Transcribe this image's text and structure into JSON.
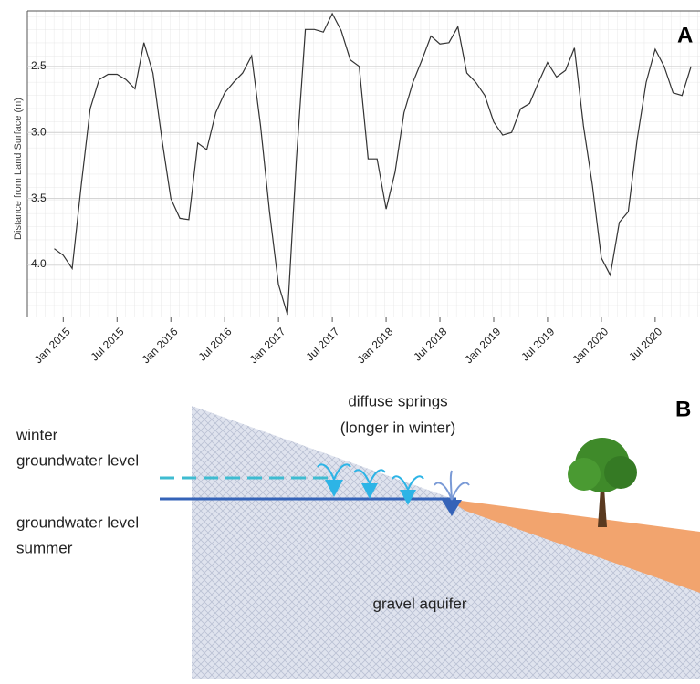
{
  "chart_data": {
    "type": "line",
    "panel_label": "A",
    "y_label": "Distance from Land Surface (m)",
    "x": [
      "2014-12",
      "2015-01",
      "2015-02",
      "2015-03",
      "2015-04",
      "2015-05",
      "2015-06",
      "2015-07",
      "2015-08",
      "2015-09",
      "2015-10",
      "2015-11",
      "2015-12",
      "2016-01",
      "2016-02",
      "2016-03",
      "2016-04",
      "2016-05",
      "2016-06",
      "2016-07",
      "2016-08",
      "2016-09",
      "2016-10",
      "2016-11",
      "2016-12",
      "2017-01",
      "2017-02",
      "2017-03",
      "2017-04",
      "2017-05",
      "2017-06",
      "2017-07",
      "2017-08",
      "2017-09",
      "2017-10",
      "2017-11",
      "2017-12",
      "2018-01",
      "2018-02",
      "2018-03",
      "2018-04",
      "2018-05",
      "2018-06",
      "2018-07",
      "2018-08",
      "2018-09",
      "2018-10",
      "2018-11",
      "2018-12",
      "2019-01",
      "2019-02",
      "2019-03",
      "2019-04",
      "2019-05",
      "2019-06",
      "2019-07",
      "2019-08",
      "2019-09",
      "2019-10",
      "2019-11",
      "2019-12",
      "2020-01",
      "2020-02",
      "2020-03",
      "2020-04",
      "2020-05",
      "2020-06",
      "2020-07",
      "2020-08",
      "2020-09",
      "2020-10",
      "2020-11"
    ],
    "series": [
      {
        "color": "#333333",
        "values": [
          3.88,
          3.93,
          4.03,
          3.4,
          2.82,
          2.6,
          2.56,
          2.56,
          2.6,
          2.67,
          2.32,
          2.55,
          3.05,
          3.5,
          3.65,
          3.66,
          3.08,
          3.13,
          2.85,
          2.7,
          2.62,
          2.55,
          2.42,
          2.95,
          3.6,
          4.15,
          4.38,
          3.2,
          2.22,
          2.22,
          2.24,
          2.1,
          2.23,
          2.45,
          2.5,
          3.2,
          3.2,
          3.58,
          3.3,
          2.85,
          2.62,
          2.45,
          2.27,
          2.33,
          2.32,
          2.2,
          2.55,
          2.62,
          2.72,
          2.92,
          3.02,
          3.0,
          2.82,
          2.78,
          2.62,
          2.47,
          2.58,
          2.53,
          2.36,
          2.95,
          3.4,
          3.95,
          4.08,
          3.68,
          3.6,
          3.05,
          2.62,
          2.37,
          2.5,
          2.7,
          2.72,
          2.5
        ]
      }
    ],
    "xlim": [
      "2014-09",
      "2020-12"
    ],
    "xticks": [
      {
        "value": "2015-01",
        "label": "Jan 2015"
      },
      {
        "value": "2015-07",
        "label": "Jul 2015"
      },
      {
        "value": "2016-01",
        "label": "Jan 2016"
      },
      {
        "value": "2016-07",
        "label": "Jul 2016"
      },
      {
        "value": "2017-01",
        "label": "Jan 2017"
      },
      {
        "value": "2017-07",
        "label": "Jul 2017"
      },
      {
        "value": "2018-01",
        "label": "Jan 2018"
      },
      {
        "value": "2018-07",
        "label": "Jul 2018"
      },
      {
        "value": "2019-01",
        "label": "Jan 2019"
      },
      {
        "value": "2019-07",
        "label": "Jul 2019"
      },
      {
        "value": "2020-01",
        "label": "Jan 2020"
      },
      {
        "value": "2020-07",
        "label": "Jul 2020"
      }
    ],
    "ylim": [
      2.08,
      4.4
    ],
    "y_inverted": true,
    "yticks": [
      2.5,
      {
        "value": 3,
        "label": "3.0"
      },
      3.5,
      {
        "value": 4,
        "label": "4.0"
      }
    ],
    "grid": true
  },
  "diagram": {
    "panel_label": "B",
    "springs_label": [
      "diffuse springs",
      "(longer in winter)"
    ],
    "winter_label": [
      "winter",
      "groundwater level"
    ],
    "summer_label": [
      "groundwater level",
      "summer"
    ],
    "aquifer_label": "gravel aquifer"
  }
}
